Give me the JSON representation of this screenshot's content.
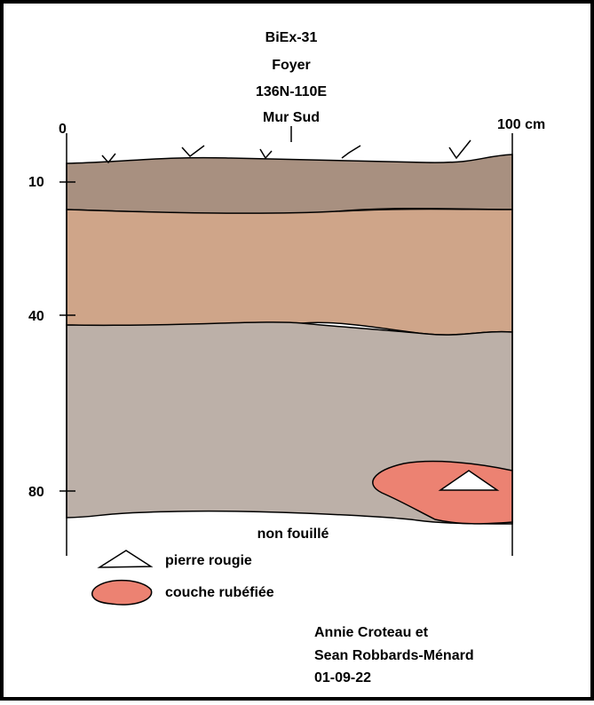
{
  "header": {
    "lines": [
      "BiEx-31",
      "Foyer",
      "136N-110E",
      "Mur Sud"
    ]
  },
  "scale": {
    "left": "0",
    "right": "100 cm",
    "depths": [
      "10",
      "40",
      "80"
    ]
  },
  "bottom_label": "non fouillé",
  "legend": [
    {
      "label": "pierre rougie"
    },
    {
      "label": "couche rubéfiée"
    }
  ],
  "credits": [
    "Annie Croteau et",
    "Sean Robbards-Ménard",
    "01-09-22"
  ]
}
